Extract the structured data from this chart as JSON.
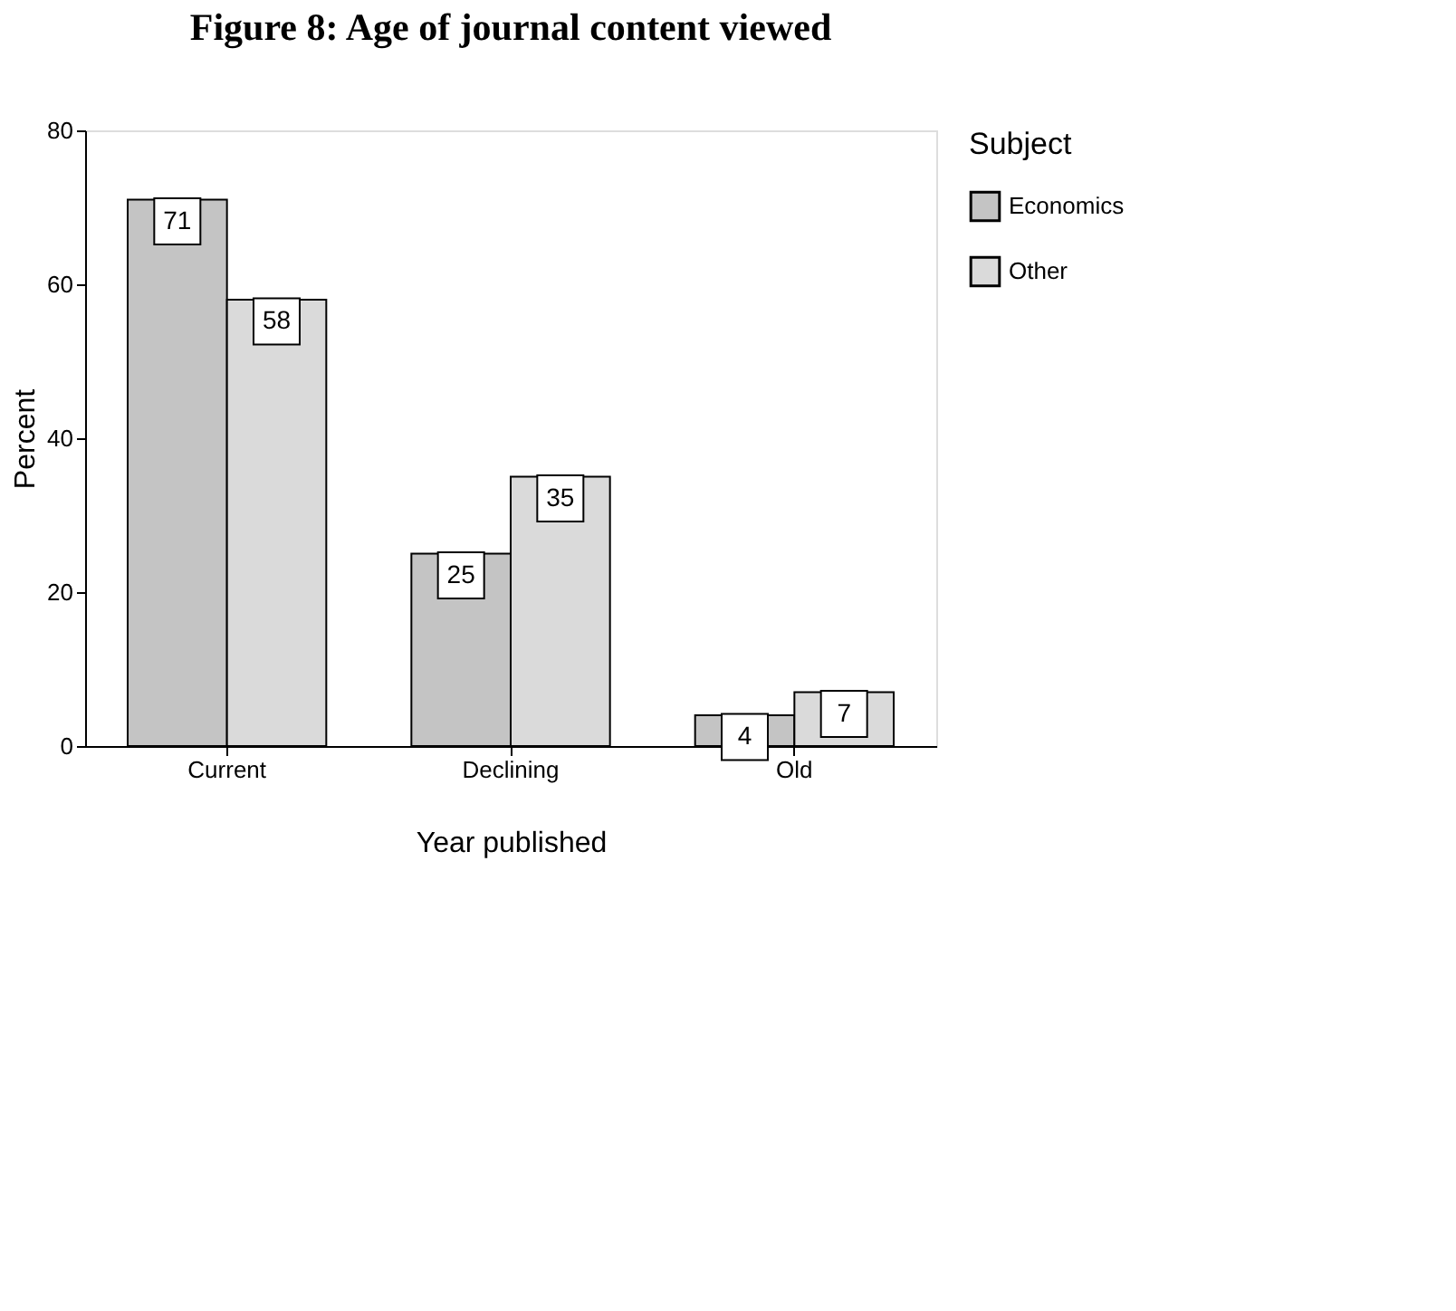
{
  "chart_data": {
    "type": "bar",
    "title": "Figure 8: Age of journal content viewed",
    "xlabel": "Year published",
    "ylabel": "Percent",
    "legend_title": "Subject",
    "categories": [
      "Current",
      "Declining",
      "Old"
    ],
    "series": [
      {
        "name": "Economics",
        "color": "#c4c4c4",
        "values": [
          71,
          25,
          4
        ]
      },
      {
        "name": "Other",
        "color": "#dadada",
        "values": [
          58,
          35,
          7
        ]
      }
    ],
    "ylim": [
      0,
      80
    ],
    "yticks": [
      0,
      20,
      40,
      60,
      80
    ],
    "grid": false,
    "legend": "right",
    "data_labels": true
  }
}
